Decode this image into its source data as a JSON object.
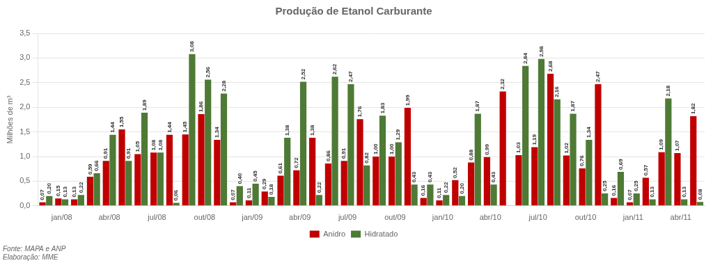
{
  "chart_data": {
    "type": "bar",
    "title": "Produção de Etanol Carburante",
    "ylabel": "Milhões de m³",
    "categories": [
      null,
      "jan/08",
      null,
      null,
      "abr/08",
      null,
      null,
      "jul/08",
      null,
      null,
      "out/08",
      null,
      null,
      "jan/09",
      null,
      null,
      "abr/09",
      null,
      null,
      "jul/09",
      null,
      null,
      "out/09",
      null,
      null,
      "jan/10",
      null,
      null,
      "abr/10",
      null,
      null,
      "jul/10",
      null,
      null,
      "out/10",
      null,
      null,
      "jan/11",
      null,
      null,
      "abr/11",
      null
    ],
    "series": [
      {
        "name": "Anidro",
        "color": "#C00000",
        "values": [
          0.07,
          0.15,
          0.13,
          0.59,
          0.91,
          1.55,
          1.05,
          1.08,
          1.44,
          1.45,
          1.86,
          1.34,
          0.07,
          0.11,
          0.29,
          0.61,
          0.72,
          1.38,
          0.86,
          0.91,
          1.76,
          1.0,
          1.0,
          1.99,
          0.16,
          0.11,
          0.52,
          0.88,
          0.99,
          2.32,
          1.03,
          1.19,
          2.68,
          1.02,
          0.76,
          2.47,
          0.16,
          0.07,
          0.57,
          1.09,
          1.07,
          1.82
        ],
        "value_labels": [
          "0,07",
          "0,15",
          "0,13",
          "0,59",
          "0,91",
          "1,55",
          "1,05",
          "1,08",
          "1,44",
          "1,45",
          "1,86",
          "1,34",
          "0,07",
          "0,11",
          "0,29",
          "0,61",
          "0,72",
          "1,38",
          "0,86",
          "0,91",
          "1,76",
          "1,00",
          "1,00",
          "1,99",
          "0,16",
          "0,11",
          "0,52",
          "0,88",
          "0,99",
          "2,32",
          "1,03",
          "1,19",
          "2,68",
          "1,02",
          "0,76",
          "2,47",
          "0,16",
          "0,07",
          "0,57",
          "1,09",
          "1,07",
          "1,82"
        ]
      },
      {
        "name": "Hidratado",
        "color": "#4E7A35",
        "values": [
          0.2,
          0.13,
          0.22,
          0.66,
          1.44,
          0.91,
          1.89,
          1.08,
          0.06,
          3.08,
          2.56,
          2.28,
          0.4,
          0.45,
          0.18,
          1.38,
          2.52,
          0.22,
          2.62,
          2.47,
          0.82,
          1.83,
          1.29,
          0.43,
          0.43,
          0.22,
          0.2,
          1.87,
          0.43,
          0.0,
          2.84,
          2.98,
          2.16,
          1.87,
          1.34,
          0.25,
          0.69,
          0.25,
          0.13,
          2.18,
          0.13,
          0.08
        ],
        "value_labels": [
          "0,20",
          "0,13",
          "0,22",
          "0,66",
          "1,44",
          "0,91",
          "1,89",
          "1,08",
          "0,06",
          "3,08",
          "2,56",
          "2,28",
          "0,40",
          "0,45",
          "0,18",
          "1,38",
          "2,52",
          "0,22",
          "2,62",
          "2,47",
          "0,82",
          "1,83",
          "1,29",
          "0,43",
          "0,43",
          "0,22",
          "0,20",
          "1,87",
          "0,43",
          null,
          "2,84",
          "2,98",
          "2,16",
          "1,87",
          "1,34",
          "0,25",
          "0,69",
          "0,25",
          "0,13",
          "2,18",
          "0,13",
          "0,08"
        ]
      }
    ],
    "ylim": [
      0,
      3.5
    ],
    "yticks": [
      {
        "value": 0,
        "label": "0,0"
      },
      {
        "value": 0.5,
        "label": "0,5"
      },
      {
        "value": 1,
        "label": "1,0"
      },
      {
        "value": 1.5,
        "label": "1,5"
      },
      {
        "value": 2,
        "label": "2,0"
      },
      {
        "value": 2.5,
        "label": "2,5"
      },
      {
        "value": 3,
        "label": "3,0"
      },
      {
        "value": 3.5,
        "label": "3,5"
      }
    ],
    "grid": true,
    "legend": "bottom",
    "data_labels": true,
    "annotations": [
      "Fonte: MAPA e ANP",
      "Elaboração: MME"
    ]
  }
}
